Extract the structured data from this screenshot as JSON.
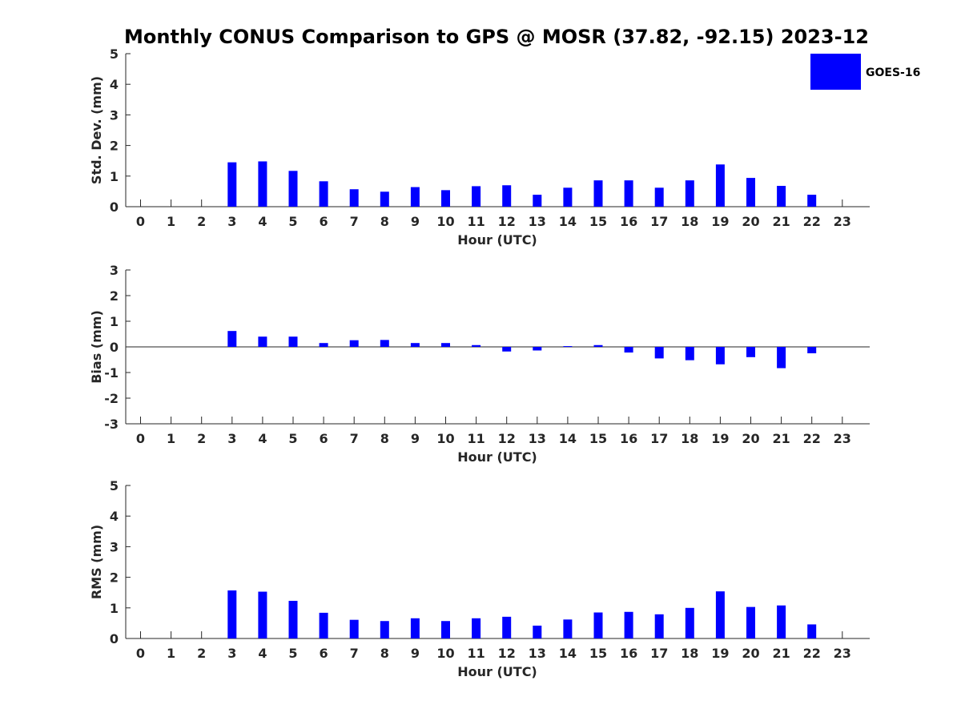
{
  "title": "Monthly CONUS Comparison to GPS @ MOSR (37.82, -92.15) 2023-12",
  "legend": {
    "label": "GOES-16",
    "color": "#0000ff"
  },
  "chart_data": [
    {
      "type": "bar",
      "categories": [
        "0",
        "1",
        "2",
        "3",
        "4",
        "5",
        "6",
        "7",
        "8",
        "9",
        "10",
        "11",
        "12",
        "13",
        "14",
        "15",
        "16",
        "17",
        "18",
        "19",
        "20",
        "21",
        "22",
        "23"
      ],
      "series": [
        {
          "name": "GOES-16",
          "values": [
            null,
            null,
            null,
            1.45,
            1.48,
            1.17,
            0.83,
            0.57,
            0.49,
            0.64,
            0.54,
            0.67,
            0.7,
            0.39,
            0.62,
            0.86,
            0.86,
            0.62,
            0.86,
            1.38,
            0.94,
            0.68,
            0.39,
            null
          ]
        }
      ],
      "xlabel": "Hour (UTC)",
      "ylabel": "Std. Dev. (mm)",
      "ylim": [
        0,
        5
      ],
      "yticks": [
        "0",
        "1",
        "2",
        "3",
        "4",
        "5"
      ],
      "grid": false,
      "legend_position": "top-right"
    },
    {
      "type": "bar",
      "categories": [
        "0",
        "1",
        "2",
        "3",
        "4",
        "5",
        "6",
        "7",
        "8",
        "9",
        "10",
        "11",
        "12",
        "13",
        "14",
        "15",
        "16",
        "17",
        "18",
        "19",
        "20",
        "21",
        "22",
        "23"
      ],
      "series": [
        {
          "name": "GOES-16",
          "values": [
            null,
            null,
            null,
            0.62,
            0.4,
            0.4,
            0.15,
            0.26,
            0.27,
            0.15,
            0.15,
            0.07,
            -0.18,
            -0.14,
            0.03,
            0.07,
            -0.22,
            -0.45,
            -0.52,
            -0.68,
            -0.4,
            -0.83,
            -0.25,
            null
          ]
        }
      ],
      "xlabel": "Hour (UTC)",
      "ylabel": "Bias (mm)",
      "ylim": [
        -3,
        3
      ],
      "yticks": [
        "-3",
        "-2",
        "-1",
        "0",
        "1",
        "2",
        "3"
      ],
      "grid": false
    },
    {
      "type": "bar",
      "categories": [
        "0",
        "1",
        "2",
        "3",
        "4",
        "5",
        "6",
        "7",
        "8",
        "9",
        "10",
        "11",
        "12",
        "13",
        "14",
        "15",
        "16",
        "17",
        "18",
        "19",
        "20",
        "21",
        "22",
        "23"
      ],
      "series": [
        {
          "name": "GOES-16",
          "values": [
            null,
            null,
            null,
            1.57,
            1.53,
            1.23,
            0.84,
            0.61,
            0.57,
            0.66,
            0.57,
            0.66,
            0.71,
            0.42,
            0.62,
            0.85,
            0.87,
            0.79,
            1.0,
            1.54,
            1.03,
            1.08,
            0.46,
            null
          ]
        }
      ],
      "xlabel": "Hour (UTC)",
      "ylabel": "RMS (mm)",
      "ylim": [
        0,
        5
      ],
      "yticks": [
        "0",
        "1",
        "2",
        "3",
        "4",
        "5"
      ],
      "grid": false
    }
  ]
}
